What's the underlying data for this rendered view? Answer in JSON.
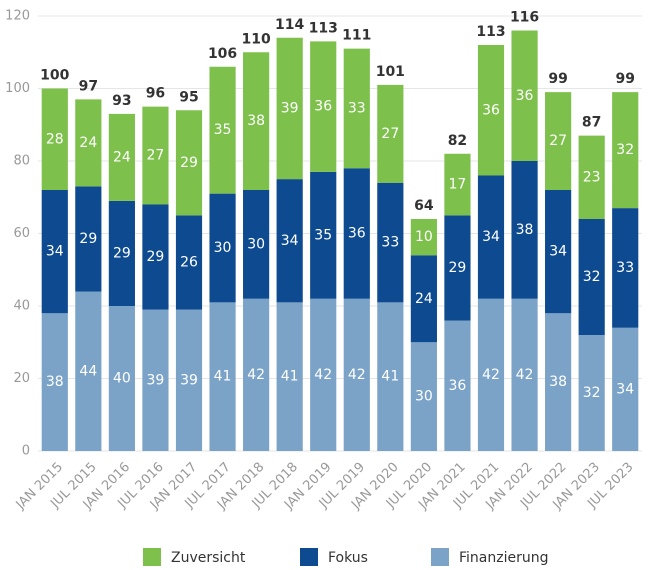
{
  "chart_data": {
    "type": "stacked_bar",
    "categories": [
      "JAN 2015",
      "JUL 2015",
      "JAN 2016",
      "JUL 2016",
      "JAN 2017",
      "JUL 2017",
      "JAN 2018",
      "JUL 2018",
      "JAN 2019",
      "JUL 2019",
      "JAN 2020",
      "JUL 2020",
      "JAN 2021",
      "JUL 2021",
      "JAN 2022",
      "JUL 2022",
      "JAN 2023",
      "JUL 2023"
    ],
    "series": [
      {
        "name": "Finanzierung",
        "color": "#7ba3c8",
        "values": [
          38,
          44,
          40,
          39,
          39,
          41,
          42,
          41,
          42,
          42,
          41,
          30,
          36,
          42,
          42,
          38,
          32,
          34
        ]
      },
      {
        "name": "Fokus",
        "color": "#0d4a8f",
        "values": [
          34,
          29,
          29,
          29,
          26,
          30,
          30,
          34,
          35,
          36,
          33,
          24,
          29,
          34,
          38,
          34,
          32,
          33
        ]
      },
      {
        "name": "Zuversicht",
        "color": "#7dc04b",
        "values": [
          28,
          24,
          24,
          27,
          29,
          35,
          38,
          39,
          36,
          33,
          27,
          10,
          17,
          36,
          36,
          27,
          23,
          32
        ]
      }
    ],
    "totals": [
      100,
      97,
      93,
      96,
      95,
      106,
      110,
      114,
      113,
      111,
      101,
      64,
      82,
      113,
      116,
      99,
      87,
      99
    ],
    "legend_order": [
      2,
      1,
      0
    ],
    "ylim": [
      0,
      120
    ],
    "yticks": [
      0,
      20,
      40,
      60,
      80,
      100,
      120
    ],
    "grid": true
  }
}
